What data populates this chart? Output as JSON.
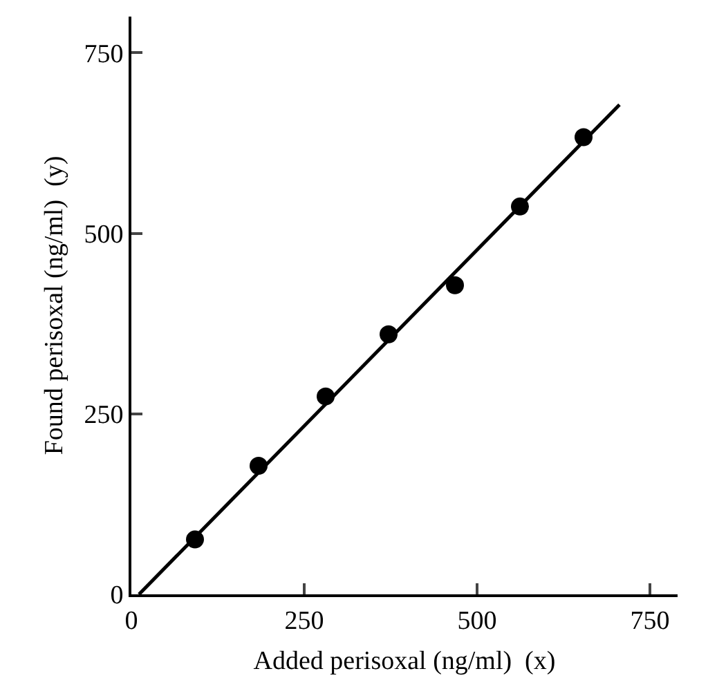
{
  "chart_data": {
    "type": "scatter",
    "xlabel": "Added perisoxal (ng/ml)  (x)",
    "ylabel": "Found perisoxal (ng/ml)  (y)",
    "x": [
      92,
      184,
      281,
      372,
      468,
      562,
      654
    ],
    "series": [
      {
        "color": "#000000",
        "marker": "circle",
        "values": [
          76,
          178,
          274,
          360,
          428,
          537,
          633
        ]
      },
      {
        "type": "line",
        "color": "#000000",
        "marker": "none",
        "x": [
          11,
          706
        ],
        "values": [
          0,
          678
        ]
      }
    ],
    "xlim": [
      0,
      790
    ],
    "xticks": [
      0,
      250,
      500,
      750
    ],
    "ylim": [
      0,
      800
    ],
    "yticks": [
      0,
      250,
      500,
      750
    ],
    "grid": false
  }
}
